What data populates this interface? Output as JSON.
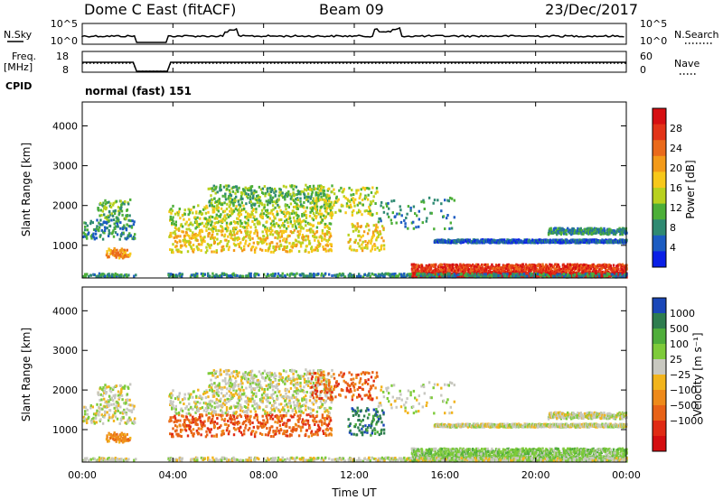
{
  "header": {
    "title": "Dome C East (fitACF)",
    "beam": "Beam 09",
    "date": "23/Dec/2017"
  },
  "aux_panels": {
    "nsky_label": "N.Sky",
    "nsky_ticks": [
      "10^5",
      "10^0"
    ],
    "nsearch_label": "N.Search",
    "nsearch_ticks": [
      "10^5",
      "10^0"
    ],
    "freq_label_line1": "Freq.",
    "freq_label_line2": "[MHz]",
    "freq_ticks": [
      "18",
      "8"
    ],
    "nave_label": "Nave",
    "nave_ticks": [
      "60",
      "0"
    ],
    "cpid_label": "CPID",
    "cpid_value": "normal (fast) 151"
  },
  "chart_data": [
    {
      "type": "heatmap",
      "name": "power",
      "ylabel": "Slant Range [km]",
      "ylim": [
        180,
        4600
      ],
      "yticks": [
        "4000",
        "3000",
        "2000",
        "1000"
      ],
      "ytick_values": [
        4000,
        3000,
        2000,
        1000
      ],
      "xlim_hours": [
        0,
        24
      ],
      "data_gap_hours": [
        2.35,
        3.75
      ],
      "colorbar": {
        "label": "Power [dB]",
        "ticks": [
          "28",
          "24",
          "20",
          "16",
          "12",
          "8",
          "4"
        ],
        "tick_values": [
          28,
          24,
          20,
          16,
          12,
          8,
          4
        ],
        "range": [
          0,
          32
        ],
        "colors": [
          "#0a1fe6",
          "#1c5cc2",
          "#2f8a72",
          "#4caf38",
          "#b8d11e",
          "#f7c81a",
          "#f39a19",
          "#ea6a1b",
          "#e23318",
          "#d60f12"
        ]
      }
    },
    {
      "type": "heatmap",
      "name": "velocity",
      "ylabel": "Slant Range [km]",
      "ylim": [
        180,
        4600
      ],
      "yticks": [
        "4000",
        "3000",
        "2000",
        "1000"
      ],
      "ytick_values": [
        4000,
        3000,
        2000,
        1000
      ],
      "xlim_hours": [
        0,
        24
      ],
      "data_gap_hours": [
        2.35,
        3.75
      ],
      "colorbar": {
        "label": "Velocity [m s⁻¹]",
        "ticks": [
          "1000",
          "500",
          "100",
          "25",
          "−25",
          "−100",
          "−500",
          "−1000"
        ],
        "tick_values": [
          1000,
          500,
          100,
          25,
          -25,
          -100,
          -500,
          -1000
        ],
        "colors": [
          "#1a47b8",
          "#2e7d4f",
          "#4fae3b",
          "#7ecb3a",
          "#c8c8c0",
          "#f2b41c",
          "#ee8a1a",
          "#e86217",
          "#e02b14",
          "#d40d10"
        ]
      }
    }
  ],
  "xaxis": {
    "ticks": [
      "00:00",
      "04:00",
      "08:00",
      "12:00",
      "16:00",
      "20:00",
      "00:00"
    ],
    "label": "Time UT"
  }
}
